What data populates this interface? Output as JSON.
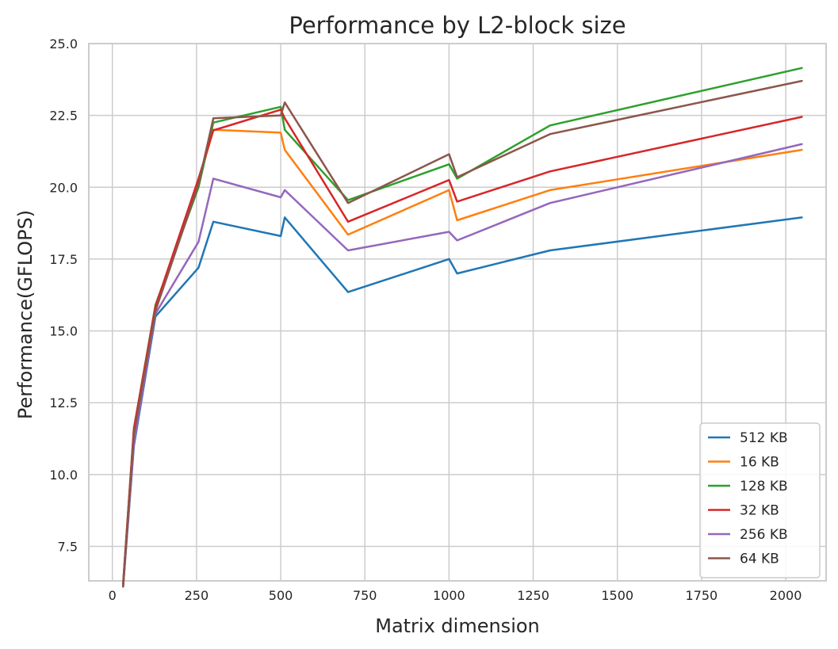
{
  "chart_data": {
    "type": "line",
    "title": "Performance by L2-block size",
    "xlabel": "Matrix dimension",
    "ylabel": "Performance(GFLOPS)",
    "xlim": [
      -70,
      2120
    ],
    "ylim": [
      6.3,
      25.0
    ],
    "xticks": [
      0,
      250,
      500,
      750,
      1000,
      1250,
      1500,
      1750,
      2000
    ],
    "yticks": [
      7.5,
      10.0,
      12.5,
      15.0,
      17.5,
      20.0,
      22.5,
      25.0
    ],
    "grid": true,
    "legend_position": "bottom-right",
    "x": [
      32,
      64,
      128,
      256,
      300,
      500,
      512,
      700,
      1000,
      1024,
      1300,
      2048
    ],
    "series": [
      {
        "name": "512 KB",
        "color": "#1f77b4",
        "values": [
          6.1,
          11.0,
          15.5,
          17.2,
          18.8,
          18.3,
          18.95,
          16.35,
          17.5,
          17.0,
          17.8,
          18.95
        ]
      },
      {
        "name": "16 KB",
        "color": "#ff7f0e",
        "values": [
          6.2,
          11.5,
          15.8,
          20.2,
          22.0,
          21.9,
          21.3,
          18.35,
          19.9,
          18.85,
          19.9,
          21.3
        ]
      },
      {
        "name": "128 KB",
        "color": "#2ca02c",
        "values": [
          6.2,
          11.6,
          15.9,
          20.0,
          22.25,
          22.8,
          22.0,
          19.55,
          20.8,
          20.3,
          22.15,
          24.15
        ]
      },
      {
        "name": "32 KB",
        "color": "#d62728",
        "values": [
          6.2,
          11.6,
          15.85,
          20.3,
          21.98,
          22.7,
          22.4,
          18.8,
          20.25,
          19.5,
          20.55,
          22.45
        ]
      },
      {
        "name": "256 KB",
        "color": "#9467bd",
        "values": [
          6.1,
          11.1,
          15.6,
          18.1,
          20.3,
          19.65,
          19.9,
          17.8,
          18.45,
          18.15,
          19.45,
          21.5
        ]
      },
      {
        "name": "64 KB",
        "color": "#8c564b",
        "values": [
          6.1,
          11.4,
          15.7,
          20.1,
          22.4,
          22.5,
          22.95,
          19.45,
          21.15,
          20.35,
          21.85,
          23.7
        ]
      }
    ]
  }
}
